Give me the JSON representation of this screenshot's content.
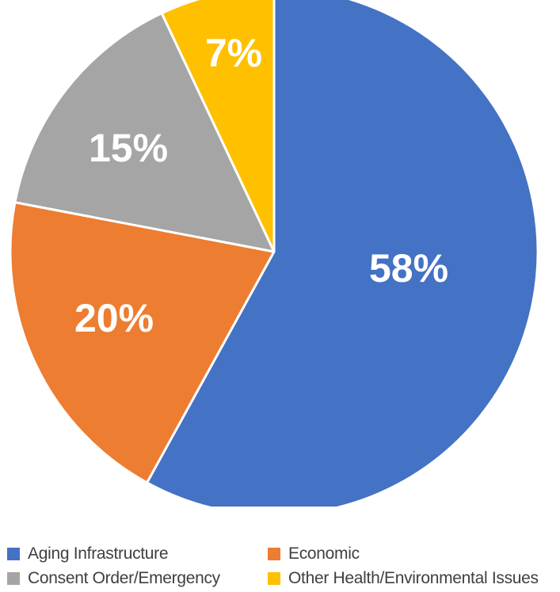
{
  "chart_data": {
    "type": "pie",
    "title": "",
    "categories": [
      "Aging Infrastructure",
      "Economic",
      "Consent Order/Emergency",
      "Other Health/Environmental Issues"
    ],
    "values": [
      58,
      20,
      15,
      7
    ],
    "value_labels": [
      "58%",
      "20%",
      "15%",
      "7%"
    ],
    "colors": [
      "#4472C4",
      "#ED7D31",
      "#A5A5A5",
      "#FFC000"
    ],
    "start_angle": "12 o'clock",
    "direction": "clockwise",
    "legend": {
      "placement": "bottom",
      "items": [
        {
          "label": "Aging Infrastructure",
          "color": "#4472C4"
        },
        {
          "label": "Economic",
          "color": "#ED7D31"
        },
        {
          "label": "Consent Order/Emergency",
          "color": "#A5A5A5"
        },
        {
          "label": "Other Health/Environmental Issues",
          "color": "#FFC000"
        }
      ]
    }
  }
}
